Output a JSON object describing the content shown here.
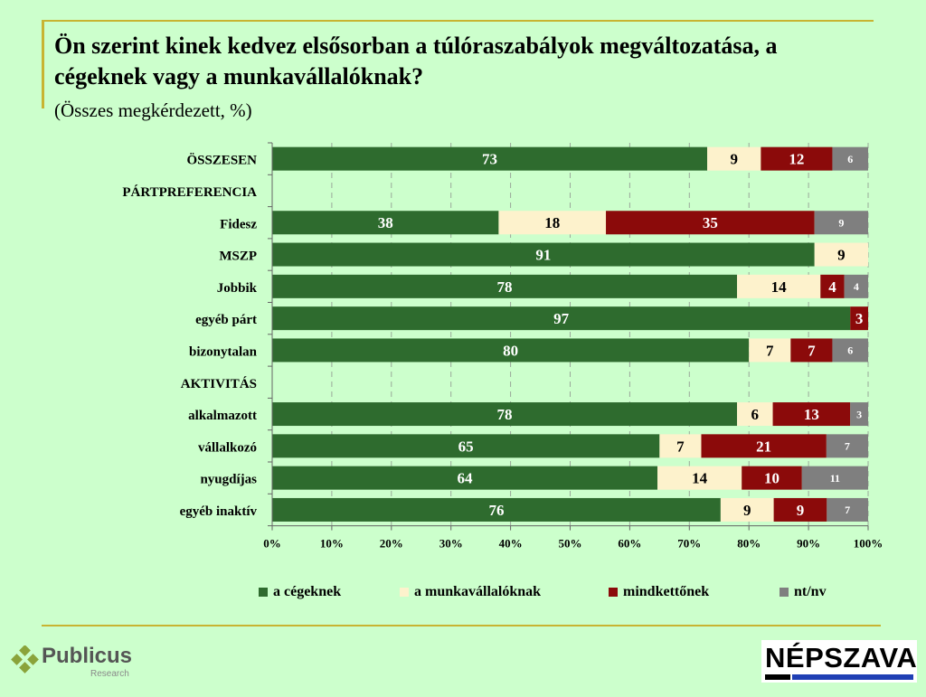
{
  "header": {
    "title": "Ön szerint kinek kedvez elsősorban a túlóraszabályok megváltozatása, a cégeknek vagy a munkavállalóknak?",
    "subtitle": "(Összes megkérdezett, %)"
  },
  "chart_data": {
    "type": "bar",
    "orientation": "horizontal",
    "stacked": "percent",
    "categories": [
      "ÖSSZESEN",
      "PÁRTPREFERENCIA",
      "Fidesz",
      "MSZP",
      "Jobbik",
      "egyéb párt",
      "bizonytalan",
      "AKTIVITÁS",
      "alkalmazott",
      "vállalkozó",
      "nyugdíjas",
      "egyéb inaktív"
    ],
    "series": [
      {
        "name": "a cégeknek",
        "color": "#2e6b2e",
        "values": [
          73,
          null,
          38,
          91,
          78,
          97,
          80,
          null,
          78,
          65,
          64,
          76
        ]
      },
      {
        "name": "a munkavállalóknak",
        "color": "#fdf2cc",
        "values": [
          9,
          null,
          18,
          9,
          14,
          null,
          7,
          null,
          6,
          7,
          14,
          9
        ]
      },
      {
        "name": "mindkettőnek",
        "color": "#8b0a0a",
        "values": [
          12,
          null,
          35,
          null,
          4,
          3,
          7,
          null,
          13,
          21,
          10,
          9
        ]
      },
      {
        "name": "nt/nv",
        "color": "#7f7f7f",
        "values": [
          6,
          null,
          9,
          null,
          4,
          null,
          6,
          null,
          3,
          7,
          11,
          7
        ]
      }
    ],
    "xticks": [
      "0%",
      "10%",
      "20%",
      "30%",
      "40%",
      "50%",
      "60%",
      "70%",
      "80%",
      "90%",
      "100%"
    ],
    "xlim": [
      0,
      100
    ],
    "grid": "vertical-dashed",
    "legend": "bottom"
  },
  "logos": {
    "publicus": {
      "name": "Publicus",
      "sub": "Research"
    },
    "nepszava": {
      "name": "NÉPSZAVA"
    }
  }
}
